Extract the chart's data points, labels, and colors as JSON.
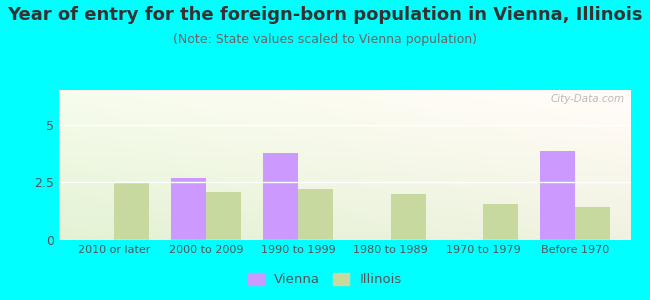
{
  "title": "Year of entry for the foreign-born population in Vienna, Illinois",
  "subtitle": "(Note: State values scaled to Vienna population)",
  "categories": [
    "2010 or later",
    "2000 to 2009",
    "1990 to 1999",
    "1980 to 1989",
    "1970 to 1979",
    "Before 1970"
  ],
  "vienna_values": [
    0,
    2.7,
    3.75,
    0,
    0,
    3.85
  ],
  "illinois_values": [
    2.45,
    2.1,
    2.2,
    2.0,
    1.55,
    1.45
  ],
  "vienna_color": "#cc99ff",
  "illinois_color": "#c8d9a0",
  "background_outer": "#00ffff",
  "ylim": [
    0,
    6.5
  ],
  "yticks": [
    0,
    2.5,
    5
  ],
  "bar_width": 0.38,
  "title_fontsize": 13.0,
  "subtitle_fontsize": 9.0
}
